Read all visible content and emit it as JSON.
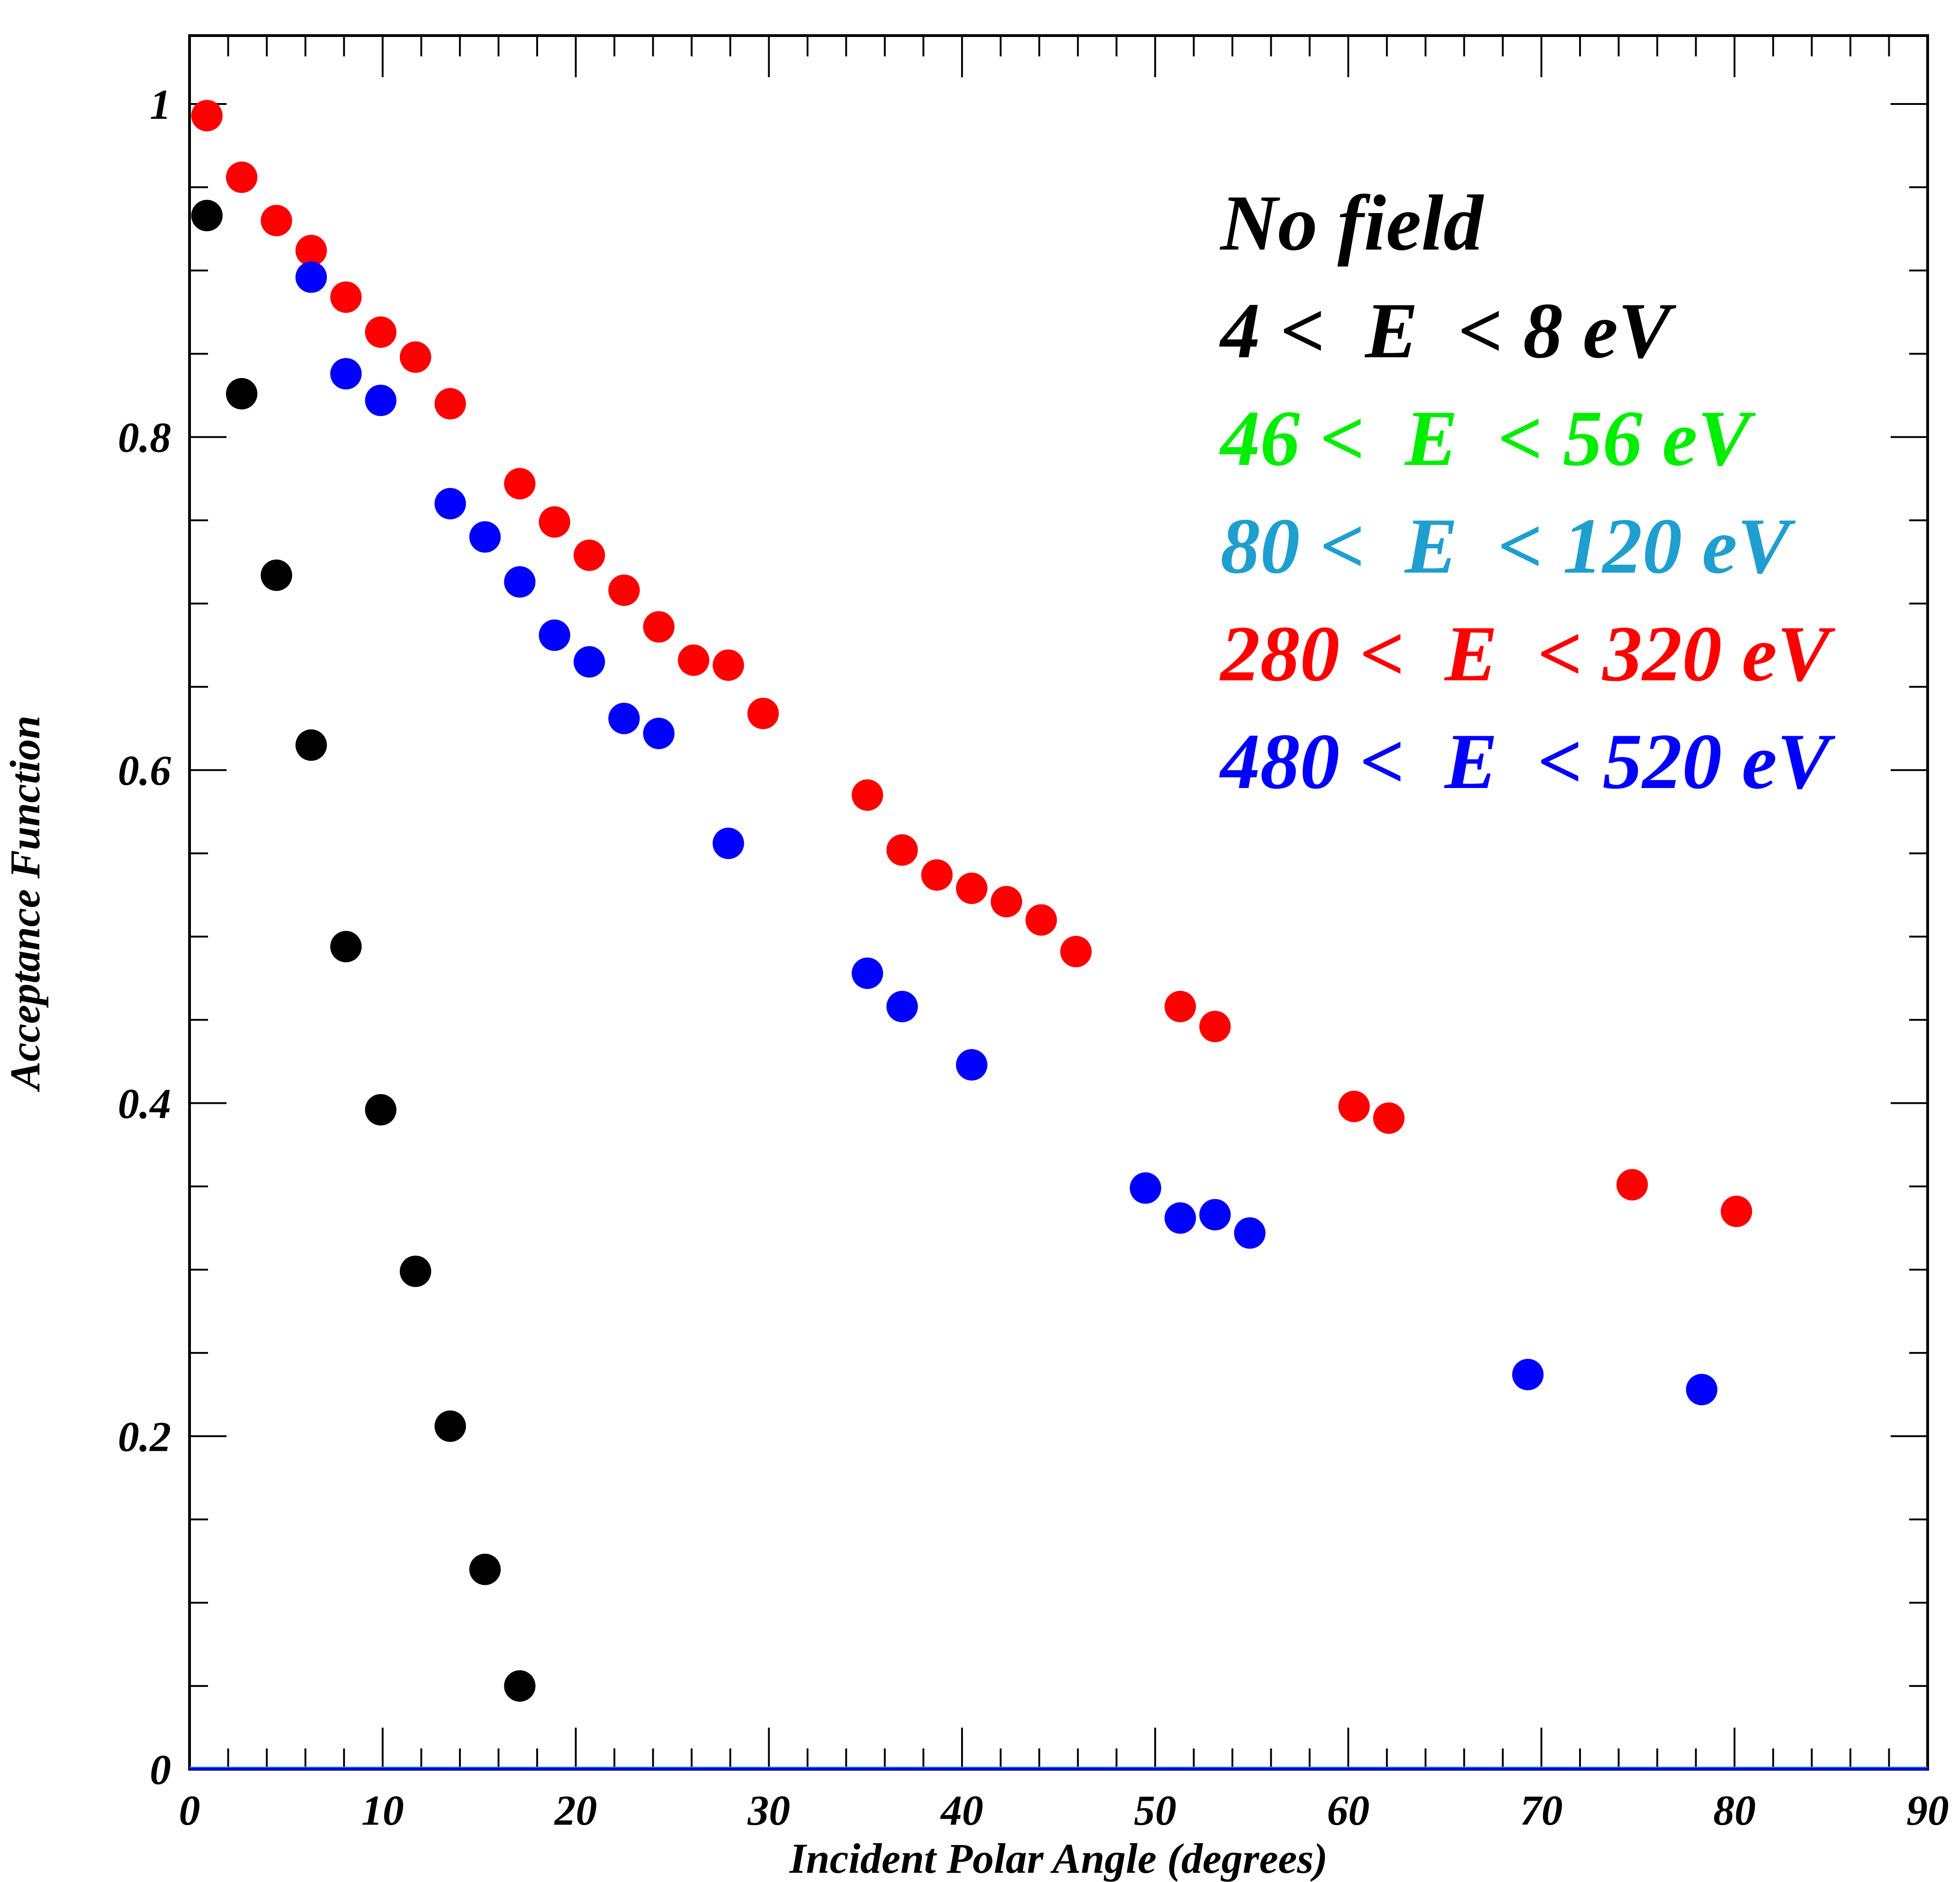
{
  "chart_data": {
    "type": "scatter",
    "title": "",
    "xlabel": "Incident Polar Angle (degrees)",
    "ylabel": "Acceptance Function",
    "xlim": [
      0,
      90
    ],
    "ylim": [
      0,
      1.04
    ],
    "x_ticks": [
      "0",
      "10",
      "20",
      "30",
      "40",
      "50",
      "60",
      "70",
      "80",
      "90"
    ],
    "y_ticks": [
      "0",
      "0.2",
      "0.4",
      "0.6",
      "0.8",
      "1"
    ],
    "grid": false,
    "legend_position": "top-right",
    "legend": [
      {
        "text": "No field",
        "color": "#000000"
      },
      {
        "text": "4 <  E  < 8 eV",
        "color": "#000000"
      },
      {
        "text": "46 <  E  < 56 eV",
        "color": "#00ee00"
      },
      {
        "text": "80 <  E  < 120 eV",
        "color": "#1e9fcf"
      },
      {
        "text": "280 <  E  < 320 eV",
        "color": "#ff0000"
      },
      {
        "text": "480 <  E  < 520 eV",
        "color": "#0000ff"
      }
    ],
    "series": [
      {
        "color": "#000000",
        "x": [
          0.9,
          2.7,
          4.5,
          6.3,
          8.1,
          9.9,
          11.7,
          13.5,
          15.3,
          17.1
        ],
        "y": [
          0.933,
          0.826,
          0.717,
          0.615,
          0.494,
          0.396,
          0.299,
          0.206,
          0.12,
          0.05
        ]
      },
      {
        "color": "#ff0000",
        "x": [
          0.9,
          2.7,
          4.5,
          6.3,
          8.1,
          9.9,
          11.7,
          13.5,
          17.1,
          18.9,
          20.7,
          22.5,
          24.3,
          26.1,
          27.9,
          29.7,
          35.1,
          36.9,
          38.7,
          40.5,
          42.3,
          44.1,
          45.9,
          51.3,
          53.1,
          60.3,
          62.1,
          74.7,
          80.1
        ],
        "y": [
          0.993,
          0.956,
          0.93,
          0.912,
          0.884,
          0.863,
          0.848,
          0.82,
          0.772,
          0.749,
          0.729,
          0.708,
          0.686,
          0.666,
          0.663,
          0.634,
          0.585,
          0.552,
          0.537,
          0.529,
          0.521,
          0.51,
          0.491,
          0.458,
          0.446,
          0.398,
          0.391,
          0.351,
          0.335
        ]
      },
      {
        "color": "#0000ff",
        "x": [
          6.3,
          8.1,
          9.9,
          13.5,
          15.3,
          17.1,
          18.9,
          20.7,
          22.5,
          24.3,
          27.9,
          35.1,
          36.9,
          40.5,
          49.5,
          51.3,
          53.1,
          54.9,
          69.3,
          78.3
        ],
        "y": [
          0.896,
          0.838,
          0.822,
          0.76,
          0.74,
          0.713,
          0.681,
          0.665,
          0.631,
          0.622,
          0.556,
          0.478,
          0.458,
          0.423,
          0.349,
          0.331,
          0.333,
          0.322,
          0.237,
          0.228
        ]
      }
    ]
  }
}
